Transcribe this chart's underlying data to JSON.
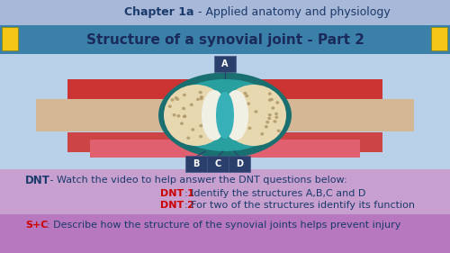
{
  "bg_main": "#b8d0e8",
  "header_bg": "#a8b8d8",
  "header_text_bold": "Chapter 1a",
  "header_text_normal": " - Applied anatomy and physiology",
  "header_text_color": "#1a3a6b",
  "title_bg": "#3a80a8",
  "title_text": "Structure of a synovial joint - Part 2",
  "title_text_color": "#1a2a5a",
  "label_bg": "#2a3f6b",
  "label_text_color": "#ffffff",
  "dnt_header_color": "#1a3a6b",
  "dnt_label_color": "#cc0000",
  "dnt_text_color": "#1a3a6b",
  "sc_label_color": "#cc0000",
  "sc_text_color": "#1a3a6b",
  "yellow_accent": "#f5c518",
  "footer_color": "#c090c8"
}
